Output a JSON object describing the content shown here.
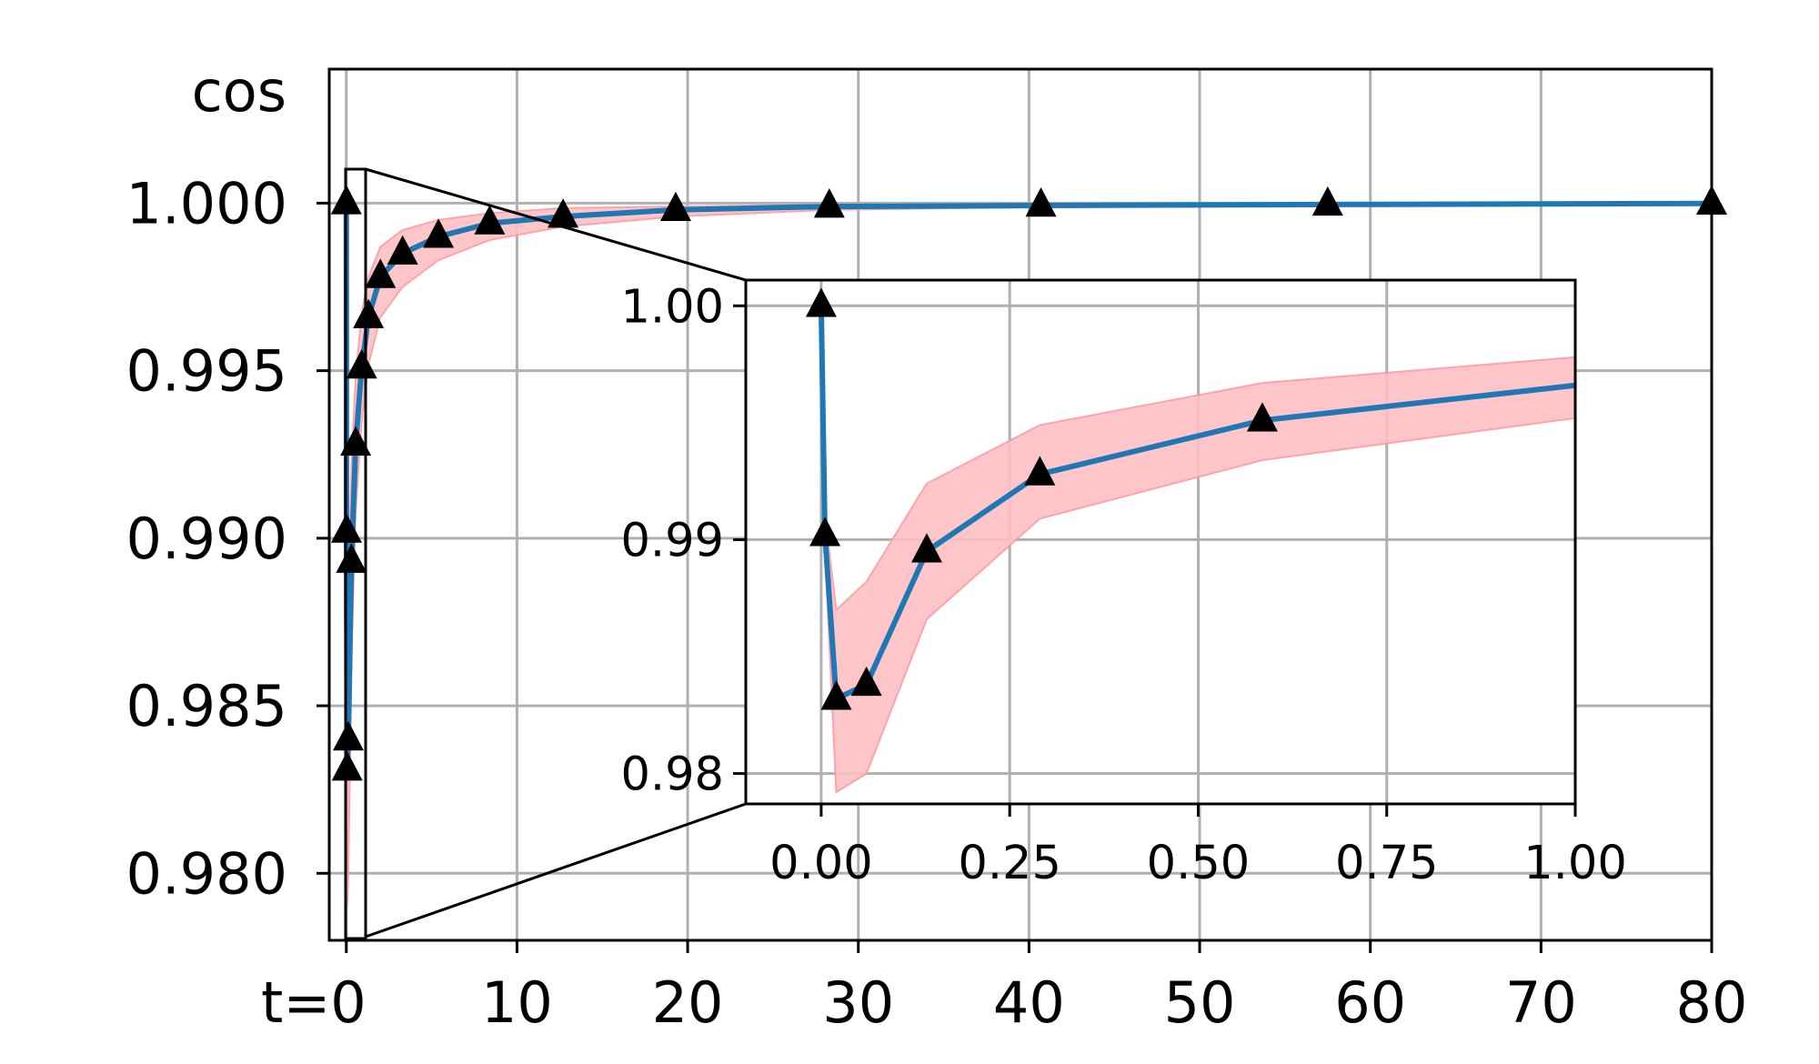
{
  "chart_data": [
    {
      "type": "line",
      "panel": "main",
      "ylabel": "cos",
      "xlim": [
        -1,
        80
      ],
      "ylim": [
        0.978,
        1.004
      ],
      "x_ticks": [
        0,
        10,
        20,
        30,
        40,
        50,
        60,
        70,
        80
      ],
      "x_tick_labels": [
        "t=0",
        "10",
        "20",
        "30",
        "40",
        "50",
        "60",
        "70",
        "80"
      ],
      "y_ticks": [
        1.0,
        0.995,
        0.99,
        0.985,
        0.98
      ],
      "y_tick_labels": [
        "1.000",
        "0.995",
        "0.990",
        "0.985",
        "0.980"
      ],
      "grid": true,
      "series": [
        {
          "style": "line with triangle markers",
          "x": [
            0,
            0.01,
            0.05,
            0.12,
            0.3,
            0.55,
            0.9,
            1.3,
            2,
            3.3,
            5.4,
            8.4,
            12.7,
            19.3,
            28.3,
            40.7,
            57.5,
            80
          ],
          "y": [
            1.0,
            0.9902,
            0.9831,
            0.984,
            0.9893,
            0.9928,
            0.9951,
            0.9966,
            0.9978,
            0.9985,
            0.999,
            0.9994,
            0.9996,
            0.9998,
            0.9999,
            0.99993,
            0.99996,
            0.99999
          ],
          "band_lower": [
            1.0,
            0.9885,
            0.979,
            0.98,
            0.9865,
            0.9908,
            0.9935,
            0.9952,
            0.9966,
            0.9975,
            0.9983,
            0.9989,
            0.9993,
            0.9996,
            0.9998,
            0.99988,
            0.99993,
            0.99997
          ],
          "band_upper": [
            1.0,
            0.9915,
            0.9868,
            0.9882,
            0.9922,
            0.9948,
            0.9967,
            0.9978,
            0.9987,
            0.9992,
            0.9995,
            0.9997,
            0.99985,
            0.9999,
            0.99995,
            0.99998,
            0.99999,
            1.0
          ]
        }
      ]
    },
    {
      "type": "line",
      "panel": "inset (zoom of t in [0, 1])",
      "xlim": [
        -0.1,
        1.0
      ],
      "ylim": [
        0.9787,
        1.0011
      ],
      "x_ticks": [
        0.0,
        0.25,
        0.5,
        0.75,
        1.0
      ],
      "x_tick_labels": [
        "0.00",
        "0.25",
        "0.50",
        "0.75",
        "1.00"
      ],
      "y_ticks": [
        1.0,
        0.99,
        0.98
      ],
      "y_tick_labels": [
        "1.00",
        "0.99",
        "0.98"
      ],
      "grid": true,
      "series": [
        {
          "style": "line with triangle markers",
          "x": [
            0.0,
            0.005,
            0.02,
            0.06,
            0.14,
            0.29,
            0.585,
            1.0
          ],
          "y": [
            1.0,
            0.9902,
            0.9832,
            0.9838,
            0.9895,
            0.9928,
            0.9951,
            0.9966
          ],
          "band_lower": [
            1.0,
            0.9895,
            0.9792,
            0.98,
            0.9866,
            0.9909,
            0.9934,
            0.9952
          ],
          "band_upper": [
            1.0,
            0.991,
            0.987,
            0.9882,
            0.9924,
            0.9949,
            0.9967,
            0.9978
          ],
          "markers_x": [
            0.0,
            0.005,
            0.02,
            0.06,
            0.14,
            0.29,
            0.585
          ],
          "markers_y": [
            1.0,
            0.9902,
            0.9832,
            0.9838,
            0.9895,
            0.9928,
            0.9951
          ]
        }
      ]
    }
  ],
  "colors": {
    "line": "#1f77b4",
    "band": "#ffc0c4",
    "band_edge": "#ff9aa2",
    "marker": "#000000",
    "grid": "#b0b0b0",
    "axes": "#000000"
  }
}
